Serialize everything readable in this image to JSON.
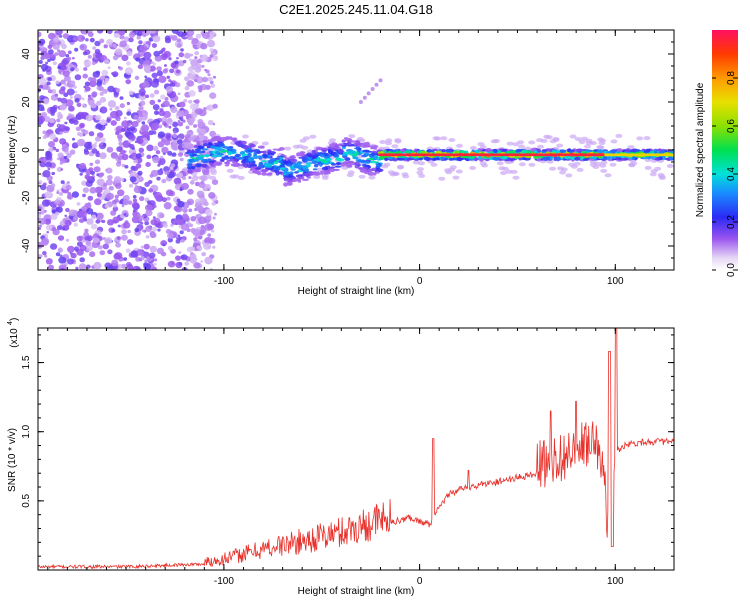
{
  "page_title": "C2E1.2025.245.11.04.G18",
  "chart_data": [
    {
      "type": "heatmap",
      "title": "C2E1.2025.245.11.04.G18",
      "xlabel": "Height of straight line (km)",
      "ylabel": "Frequency (Hz)",
      "xlim": [
        -195,
        130
      ],
      "ylim": [
        -50,
        50
      ],
      "x_ticks": [
        -100,
        0,
        100
      ],
      "y_ticks": [
        -40,
        -20,
        0,
        20,
        40
      ],
      "grid": false,
      "colorbar": {
        "label": "Normalized spectral amplitude",
        "range": [
          0,
          1
        ],
        "ticks": [
          0.0,
          0.2,
          0.4,
          0.6,
          0.8
        ],
        "tick_labels": [
          "0.0",
          "0.2",
          "0.4",
          "0.6",
          "0.8"
        ]
      },
      "regions": [
        {
          "description_of_data": "scattered noise",
          "x_range": [
            -195,
            -110
          ],
          "y_range": [
            -50,
            50
          ],
          "amplitude": 0.1
        },
        {
          "description_of_data": "signal band",
          "x_range": [
            -118,
            -20
          ],
          "center_freq": -3,
          "spread": 6,
          "amplitude": 0.45
        },
        {
          "description_of_data": "signal band",
          "x_range": [
            -20,
            95
          ],
          "center_freq": -2,
          "spread": 2,
          "amplitude": 0.97
        },
        {
          "description_of_data": "signal band",
          "x_range": [
            95,
            130
          ],
          "center_freq": -2,
          "spread": 2,
          "amplitude": 0.75
        }
      ]
    },
    {
      "type": "line",
      "xlabel": "Height of straight line (km)",
      "ylabel": "SNR (10 * v/v)",
      "y_multiplier": "(x10",
      "y_multiplier_exp": "4",
      "xlim": [
        -195,
        130
      ],
      "ylim": [
        0,
        1.75
      ],
      "x_ticks": [
        -100,
        0,
        100
      ],
      "y_ticks": [
        0.5,
        1.0,
        1.5
      ],
      "y_tick_labels": [
        "0.5",
        "1.0",
        "1.5"
      ],
      "grid": false,
      "series_color": "#e8302a",
      "envelope": {
        "x": [
          -195,
          -150,
          -110,
          -95,
          -80,
          -60,
          -40,
          -20,
          -5,
          5,
          10,
          15,
          25,
          40,
          55,
          65,
          75,
          85,
          92,
          97,
          100,
          105,
          115,
          130
        ],
        "y": [
          0.02,
          0.02,
          0.04,
          0.08,
          0.13,
          0.18,
          0.24,
          0.32,
          0.38,
          0.33,
          0.45,
          0.55,
          0.6,
          0.64,
          0.68,
          0.72,
          0.78,
          0.85,
          0.85,
          0.2,
          0.84,
          0.9,
          0.92,
          0.92
        ]
      }
    }
  ]
}
